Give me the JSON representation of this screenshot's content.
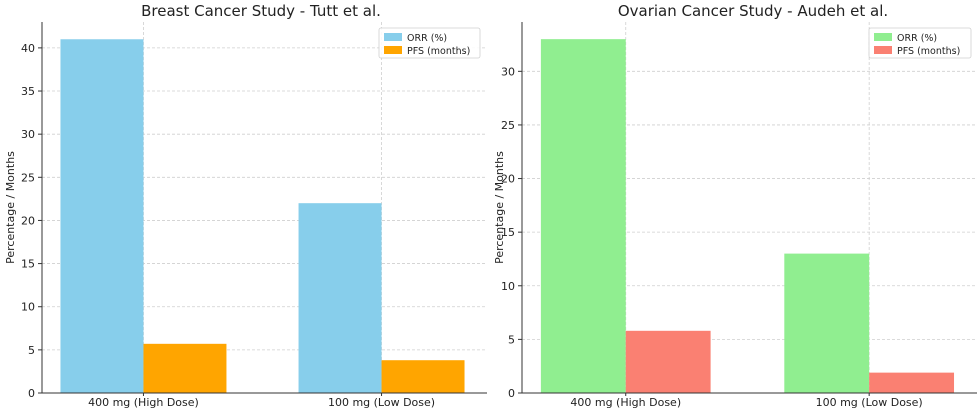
{
  "chart_data": [
    {
      "type": "bar",
      "title": "Breast Cancer Study - Tutt et al.",
      "ylabel": "Percentage / Months",
      "xlabel": "",
      "categories": [
        "400 mg (High Dose)",
        "100 mg (Low Dose)"
      ],
      "series": [
        {
          "name": "ORR (%)",
          "values": [
            41,
            22
          ],
          "color": "#87ceeb"
        },
        {
          "name": "PFS (months)",
          "values": [
            5.7,
            3.8
          ],
          "color": "#ffa500"
        }
      ],
      "ylim": [
        0,
        43
      ],
      "yticks": [
        0,
        5,
        10,
        15,
        20,
        25,
        30,
        35,
        40
      ],
      "grid": true,
      "legend": "top-right"
    },
    {
      "type": "bar",
      "title": "Ovarian Cancer Study - Audeh et al.",
      "ylabel": "Percentage / Months",
      "xlabel": "",
      "categories": [
        "400 mg (High Dose)",
        "100 mg (Low Dose)"
      ],
      "series": [
        {
          "name": "ORR (%)",
          "values": [
            33,
            13
          ],
          "color": "#90ee90"
        },
        {
          "name": "PFS (months)",
          "values": [
            5.8,
            1.9
          ],
          "color": "#fa8072"
        }
      ],
      "ylim": [
        0,
        34.6
      ],
      "yticks": [
        0,
        5,
        10,
        15,
        20,
        25,
        30
      ],
      "grid": true,
      "legend": "top-right"
    }
  ]
}
